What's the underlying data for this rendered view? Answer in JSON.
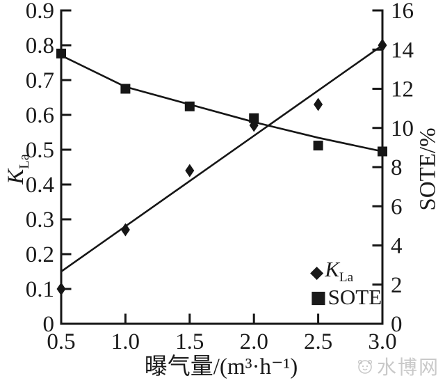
{
  "watermark": {
    "text": "水博网"
  },
  "chart_data": {
    "type": "scatter",
    "title": "",
    "grid": false,
    "legend_position": "inside-bottom-right",
    "x_axis": {
      "label": "曝气量/(m³·h⁻¹)",
      "range": [
        0.5,
        3.0
      ],
      "tick_values": [
        0.5,
        1.0,
        1.5,
        2.0,
        2.5,
        3.0
      ],
      "tick_labels": [
        "0.5",
        "1.0",
        "1.5",
        "2.0",
        "2.5",
        "3.0"
      ]
    },
    "left_y_axis": {
      "label_main": "K",
      "label_sub": "La",
      "range": [
        0,
        0.9
      ],
      "tick_values": [
        0,
        0.1,
        0.2,
        0.3,
        0.4,
        0.5,
        0.6,
        0.7,
        0.8,
        0.9
      ],
      "tick_labels": [
        "0",
        "0.1",
        "0.2",
        "0.3",
        "0.4",
        "0.5",
        "0.6",
        "0.7",
        "0.8",
        "0.9"
      ]
    },
    "right_y_axis": {
      "label": "SOTE/%",
      "range": [
        0,
        16
      ],
      "tick_values": [
        0,
        2,
        4,
        6,
        8,
        10,
        12,
        14,
        16
      ],
      "tick_labels": [
        "0",
        "2",
        "4",
        "6",
        "8",
        "10",
        "12",
        "14",
        "16"
      ]
    },
    "series": [
      {
        "id": "kla",
        "name_main": "K",
        "name_sub": "La",
        "axis": "left",
        "marker": "diamond",
        "x": [
          0.5,
          1.0,
          1.5,
          2.0,
          2.5,
          3.0
        ],
        "y": [
          0.1,
          0.27,
          0.44,
          0.57,
          0.63,
          0.8
        ],
        "fit_line": {
          "x": [
            0.5,
            3.0
          ],
          "y": [
            0.15,
            0.8
          ]
        }
      },
      {
        "id": "sote",
        "name": "SOTE",
        "axis": "right",
        "marker": "square",
        "x": [
          0.5,
          1.0,
          1.5,
          2.0,
          2.5,
          3.0
        ],
        "y": [
          13.8,
          12.0,
          11.1,
          10.5,
          9.1,
          8.8
        ],
        "fit_line": {
          "x": [
            0.5,
            1.0,
            1.5,
            2.0,
            2.5,
            3.0
          ],
          "y": [
            13.7,
            12.1,
            11.2,
            10.3,
            9.5,
            8.8
          ]
        }
      }
    ],
    "colors": {
      "ink": "#161616"
    }
  }
}
